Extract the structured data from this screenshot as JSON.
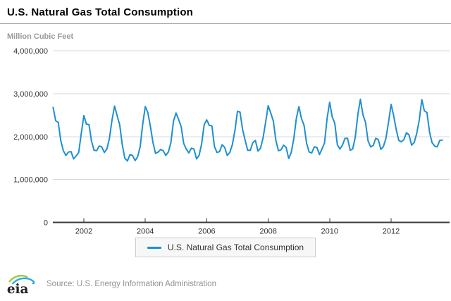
{
  "header": {
    "title": "U.S. Natural Gas Total Consumption"
  },
  "chart": {
    "unit_label": "Million Cubic Feet",
    "legend_label": "U.S. Natural Gas Total Consumption"
  },
  "chart_data": {
    "type": "line",
    "title": "U.S. Natural Gas Total Consumption",
    "ylabel": "Million Cubic Feet",
    "unit": "Million Cubic Feet",
    "color": "#1E8FD1",
    "grid": true,
    "legend_position": "bottom",
    "ylim": [
      0,
      4000000
    ],
    "start": "2001-01",
    "end": "2013-09",
    "frequency": "monthly",
    "x_ticks": [
      {
        "year": 2002,
        "label": "2002"
      },
      {
        "year": 2004,
        "label": "2004"
      },
      {
        "year": 2006,
        "label": "2006"
      },
      {
        "year": 2008,
        "label": "2008"
      },
      {
        "year": 2010,
        "label": "2010"
      },
      {
        "year": 2012,
        "label": "2012"
      }
    ],
    "y_ticks": [
      {
        "value": 4000000,
        "label": "4,000,000"
      },
      {
        "value": 3000000,
        "label": "3,000,000"
      },
      {
        "value": 2000000,
        "label": "2,000,000"
      },
      {
        "value": 1000000,
        "label": "1,000,000"
      },
      {
        "value": 0,
        "label": "0"
      }
    ],
    "series": [
      {
        "name": "U.S. Natural Gas Total Consumption",
        "values": [
          2680000,
          2370000,
          2330000,
          1900000,
          1670000,
          1560000,
          1640000,
          1650000,
          1480000,
          1550000,
          1630000,
          2080000,
          2490000,
          2290000,
          2280000,
          1890000,
          1680000,
          1670000,
          1780000,
          1760000,
          1630000,
          1710000,
          1960000,
          2390000,
          2710000,
          2490000,
          2270000,
          1810000,
          1500000,
          1430000,
          1580000,
          1560000,
          1440000,
          1530000,
          1760000,
          2300000,
          2700000,
          2560000,
          2230000,
          1860000,
          1610000,
          1640000,
          1700000,
          1670000,
          1560000,
          1640000,
          1860000,
          2360000,
          2550000,
          2400000,
          2230000,
          1840000,
          1710000,
          1620000,
          1730000,
          1710000,
          1480000,
          1560000,
          1830000,
          2280000,
          2390000,
          2260000,
          2250000,
          1770000,
          1630000,
          1650000,
          1810000,
          1750000,
          1560000,
          1630000,
          1810000,
          2140000,
          2590000,
          2570000,
          2160000,
          1910000,
          1680000,
          1680000,
          1860000,
          1910000,
          1660000,
          1730000,
          1970000,
          2340000,
          2720000,
          2550000,
          2360000,
          1910000,
          1670000,
          1690000,
          1800000,
          1750000,
          1490000,
          1630000,
          1950000,
          2430000,
          2700000,
          2420000,
          2260000,
          1840000,
          1640000,
          1620000,
          1760000,
          1750000,
          1580000,
          1710000,
          1850000,
          2430000,
          2800000,
          2460000,
          2310000,
          1810000,
          1710000,
          1800000,
          1960000,
          1960000,
          1680000,
          1710000,
          1980000,
          2510000,
          2870000,
          2510000,
          2330000,
          1900000,
          1760000,
          1790000,
          1960000,
          1930000,
          1700000,
          1770000,
          1960000,
          2340000,
          2750000,
          2490000,
          2160000,
          1910000,
          1880000,
          1930000,
          2090000,
          2040000,
          1800000,
          1860000,
          2070000,
          2390000,
          2860000,
          2600000,
          2560000,
          2110000,
          1860000,
          1780000,
          1760000,
          1910000,
          1920000
        ]
      }
    ]
  },
  "footer": {
    "logo_text": "eia",
    "source": "Source: U.S. Energy Information Administration"
  }
}
